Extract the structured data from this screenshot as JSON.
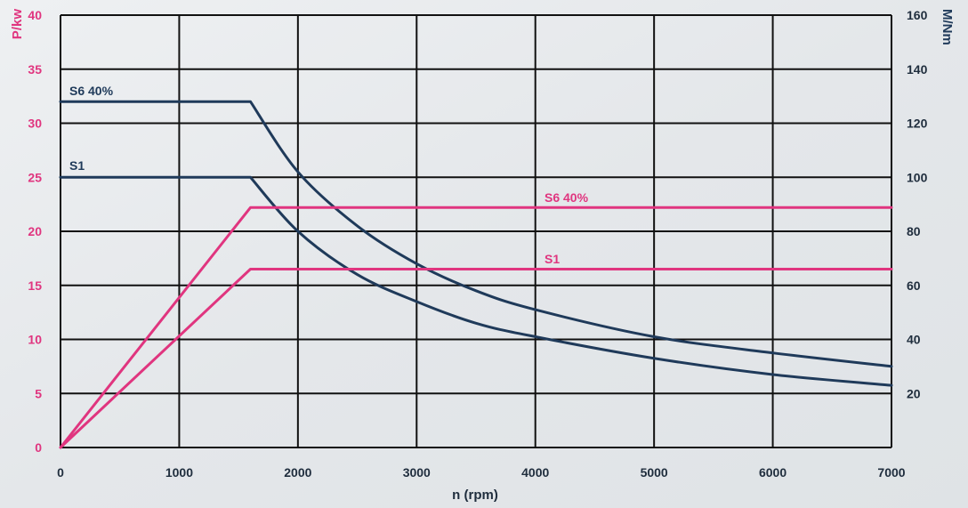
{
  "chart_data": {
    "type": "line",
    "xlabel": "n (rpm)",
    "ylabel_left": "P/kw",
    "ylabel_right": "M/Nm",
    "xlim": [
      0,
      7000
    ],
    "ylim_left": [
      0,
      40
    ],
    "ylim_right": [
      0,
      160
    ],
    "x_ticks": [
      "0",
      "1000",
      "2000",
      "3000",
      "4000",
      "5000",
      "6000",
      "7000"
    ],
    "y_ticks_left": [
      "0",
      "5",
      "10",
      "15",
      "20",
      "25",
      "30",
      "35",
      "40"
    ],
    "y_ticks_right": [
      "20",
      "40",
      "60",
      "80",
      "100",
      "120",
      "140",
      "160"
    ],
    "grid": true,
    "series": [
      {
        "name": "S6 40%",
        "axis": "right",
        "color": "#1f3a5a",
        "x": [
          0,
          1600,
          2000,
          2500,
          3000,
          3500,
          4000,
          5000,
          6000,
          7000
        ],
        "y": [
          128,
          128,
          102,
          82,
          68,
          58,
          51,
          41,
          35,
          30
        ]
      },
      {
        "name": "S1",
        "axis": "right",
        "color": "#1f3a5a",
        "x": [
          0,
          1600,
          2000,
          2500,
          3000,
          3500,
          4000,
          5000,
          6000,
          7000
        ],
        "y": [
          100,
          100,
          80,
          64,
          54,
          46,
          41,
          33,
          27,
          23
        ]
      },
      {
        "name": "S6 40%",
        "axis": "left",
        "color": "#e0357f",
        "x": [
          0,
          1600,
          7000
        ],
        "y": [
          0,
          22.2,
          22.2
        ]
      },
      {
        "name": "S1",
        "axis": "left",
        "color": "#e0357f",
        "x": [
          0,
          1600,
          7000
        ],
        "y": [
          0,
          16.5,
          16.5
        ]
      }
    ]
  },
  "colors": {
    "grid": "#111111",
    "left_axis": "#e0357f",
    "right_axis": "#1f3a5a",
    "tick_text": "#1f2d3d"
  }
}
